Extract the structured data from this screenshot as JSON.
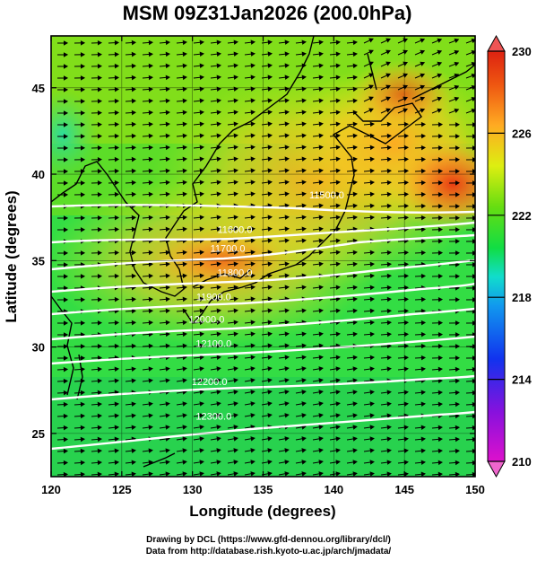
{
  "chart_data": {
    "type": "heatmap",
    "title": "MSM 09Z31Jan2026 (200.0hPa)",
    "xlabel": "Longitude (degrees)",
    "ylabel": "Latitude  (degrees)",
    "xlim": [
      120,
      150
    ],
    "ylim": [
      22.5,
      48
    ],
    "xticks": [
      120,
      125,
      130,
      135,
      140,
      145,
      150
    ],
    "yticks": [
      25,
      30,
      35,
      40,
      45
    ],
    "colorbar": {
      "min": 210,
      "max": 230,
      "ticks": [
        210,
        214,
        218,
        222,
        226,
        230
      ],
      "colors": [
        "#dd11cc",
        "#8811dd",
        "#1133ee",
        "#11aaee",
        "#11dd66",
        "#55dd11",
        "#ccee11",
        "#ffaa22",
        "#ee4411",
        "#dd2211"
      ]
    },
    "temperature_field_description_values": [
      {
        "lon": 123,
        "lat": 40,
        "value": 219
      },
      {
        "lon": 127,
        "lat": 36,
        "value": 226
      },
      {
        "lon": 131,
        "lat": 36,
        "value": 226
      },
      {
        "lon": 136,
        "lat": 42,
        "value": 225
      },
      {
        "lon": 142,
        "lat": 44,
        "value": 226
      },
      {
        "lon": 148,
        "lat": 39,
        "value": 228
      },
      {
        "lon": 126,
        "lat": 28,
        "value": 222
      },
      {
        "lon": 140,
        "lat": 26,
        "value": 222
      },
      {
        "lon": 123,
        "lat": 24,
        "value": 221
      }
    ],
    "contours": [
      {
        "label": "11500.0",
        "lon": 139.5,
        "lat": 38.6
      },
      {
        "label": "11600.0",
        "lon": 133.0,
        "lat": 36.6
      },
      {
        "label": "11700.0",
        "lon": 132.5,
        "lat": 35.5
      },
      {
        "label": "11800.0",
        "lon": 133.0,
        "lat": 34.1
      },
      {
        "label": "11900.0",
        "lon": 131.5,
        "lat": 32.7
      },
      {
        "label": "12000.0",
        "lon": 131.0,
        "lat": 31.4
      },
      {
        "label": "12100.0",
        "lon": 131.5,
        "lat": 30.0
      },
      {
        "label": "12200.0",
        "lon": 131.2,
        "lat": 27.8
      },
      {
        "label": "12300.0",
        "lon": 131.5,
        "lat": 25.8
      }
    ],
    "grid": true,
    "colorbar_placement": "right"
  },
  "credits": {
    "line1": "Drawing by DCL (https://www.gfd-dennou.org/library/dcl/)",
    "line2": "Data from http://database.rish.kyoto-u.ac.jp/arch/jmadata/"
  }
}
